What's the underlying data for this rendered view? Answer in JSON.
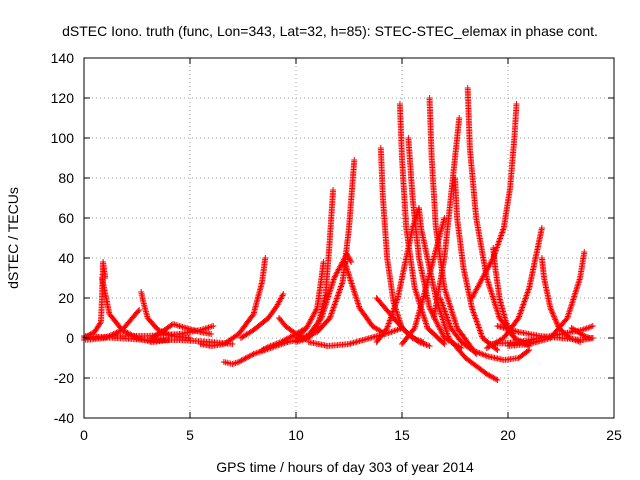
{
  "chart_data": {
    "type": "scatter",
    "title": "dSTEC Iono. truth (func, Lon=343, Lat=32, h=85): STEC-STEC_elemax in phase cont.",
    "xlabel": "GPS time / hours of day 303 of year 2014",
    "ylabel": "dSTEC  / TECUs",
    "xlim": [
      0,
      25
    ],
    "ylim": [
      -40,
      140
    ],
    "x_ticks": [
      "0",
      "5",
      "10",
      "15",
      "20",
      "25"
    ],
    "y_ticks": [
      "-40",
      "-20",
      "0",
      "20",
      "40",
      "60",
      "80",
      "100",
      "120",
      "140"
    ],
    "grid": true,
    "marker": "plus",
    "color": "#ff0000",
    "series": [
      {
        "x": [
          0.0,
          0.5,
          0.8,
          0.85,
          0.9,
          1.0
        ],
        "y": [
          0,
          3,
          8,
          20,
          38,
          30
        ]
      },
      {
        "x": [
          0.85,
          1.2,
          1.8,
          2.5,
          3.2,
          4.0
        ],
        "y": [
          30,
          12,
          4,
          0,
          -2,
          -1
        ]
      },
      {
        "x": [
          0.0,
          1.0,
          1.8,
          2.2,
          2.6
        ],
        "y": [
          -1,
          0,
          4,
          9,
          14
        ]
      },
      {
        "x": [
          2.7,
          2.8,
          3.0,
          3.5,
          4.2,
          5.0
        ],
        "y": [
          23,
          18,
          10,
          4,
          1,
          0
        ]
      },
      {
        "x": [
          3.2,
          3.8,
          4.2,
          4.8,
          5.5,
          6.0
        ],
        "y": [
          0,
          4,
          7,
          5,
          3,
          2
        ]
      },
      {
        "x": [
          0.3,
          1.5,
          3.0,
          4.5,
          5.5,
          6.1
        ],
        "y": [
          0,
          1,
          1,
          2,
          4,
          6
        ]
      },
      {
        "x": [
          0.0,
          1.5,
          3.0,
          4.5,
          6.0,
          7.0
        ],
        "y": [
          1,
          0,
          -1,
          -1,
          -2,
          -3
        ]
      },
      {
        "x": [
          5.5,
          6.0,
          6.6,
          7.3,
          8.0,
          8.4,
          8.55
        ],
        "y": [
          -3,
          -4,
          -3,
          2,
          12,
          28,
          40
        ]
      },
      {
        "x": [
          6.6,
          7.0,
          7.3,
          8.0,
          8.8,
          9.6,
          10.5
        ],
        "y": [
          -12,
          -13,
          -12,
          -8,
          -5,
          -2,
          0
        ]
      },
      {
        "x": [
          8.4,
          8.8,
          9.3,
          10.0,
          10.5
        ],
        "y": [
          -6,
          -4,
          -2,
          2,
          5
        ]
      },
      {
        "x": [
          7.4,
          8.0,
          8.7,
          9.1,
          9.4
        ],
        "y": [
          0,
          4,
          10,
          16,
          22
        ]
      },
      {
        "x": [
          9.2,
          9.5,
          10.0,
          10.3
        ],
        "y": [
          10,
          6,
          2,
          0
        ]
      },
      {
        "x": [
          10.0,
          10.5,
          11.0,
          11.2,
          11.3
        ],
        "y": [
          0,
          5,
          15,
          30,
          38
        ]
      },
      {
        "x": [
          10.0,
          10.6,
          11.0,
          11.4,
          11.6,
          11.75
        ],
        "y": [
          -2,
          0,
          5,
          22,
          50,
          74
        ]
      },
      {
        "x": [
          10.2,
          11.0,
          11.6,
          12.2,
          12.5,
          12.75
        ],
        "y": [
          0,
          3,
          10,
          28,
          55,
          89
        ]
      },
      {
        "x": [
          10.5,
          11.2,
          11.8,
          12.4,
          12.6
        ],
        "y": [
          0,
          10,
          30,
          42,
          38
        ]
      },
      {
        "x": [
          12.3,
          12.6,
          13.0,
          13.6,
          14.2
        ],
        "y": [
          38,
          28,
          15,
          6,
          2
        ]
      },
      {
        "x": [
          10.6,
          11.5,
          12.5,
          13.5,
          14.5,
          15.0
        ],
        "y": [
          -2,
          -4,
          -3,
          0,
          3,
          5
        ]
      },
      {
        "x": [
          14.0,
          14.1,
          14.3,
          14.6,
          15.0,
          15.5,
          16.0
        ],
        "y": [
          95,
          70,
          40,
          18,
          5,
          0,
          -2
        ]
      },
      {
        "x": [
          13.8,
          14.3,
          14.8,
          15.2,
          15.5,
          15.8
        ],
        "y": [
          -2,
          5,
          20,
          40,
          55,
          65
        ]
      },
      {
        "x": [
          14.9,
          15.0,
          15.2,
          15.6,
          16.2,
          17.0
        ],
        "y": [
          117,
          90,
          55,
          25,
          5,
          -3
        ]
      },
      {
        "x": [
          13.8,
          14.6,
          15.2,
          15.8,
          16.3
        ],
        "y": [
          20,
          10,
          3,
          -2,
          -4
        ]
      },
      {
        "x": [
          15.0,
          15.6,
          16.0,
          16.5,
          17.0
        ],
        "y": [
          -3,
          5,
          20,
          40,
          60
        ]
      },
      {
        "x": [
          15.3,
          15.5,
          15.8,
          16.3,
          17.0,
          17.8
        ],
        "y": [
          100,
          70,
          40,
          15,
          0,
          -5
        ]
      },
      {
        "x": [
          15.8,
          15.9,
          16.2,
          16.6,
          17.2,
          18.0,
          19.0,
          19.5
        ],
        "y": [
          65,
          55,
          40,
          20,
          0,
          -10,
          -18,
          -21
        ]
      },
      {
        "x": [
          16.3,
          16.4,
          16.6,
          17.0,
          17.6,
          18.5
        ],
        "y": [
          120,
          90,
          55,
          25,
          5,
          -8
        ]
      },
      {
        "x": [
          16.5,
          17.0,
          17.3,
          17.5,
          17.7
        ],
        "y": [
          10,
          40,
          70,
          90,
          110
        ]
      },
      {
        "x": [
          16.8,
          17.3,
          17.8,
          18.3,
          19.0,
          19.8,
          20.5,
          21.0
        ],
        "y": [
          20,
          5,
          -2,
          -6,
          -9,
          -11,
          -10,
          -6
        ]
      },
      {
        "x": [
          17.5,
          17.6,
          17.9,
          18.3,
          18.8,
          19.5
        ],
        "y": [
          80,
          60,
          35,
          15,
          0,
          -6
        ]
      },
      {
        "x": [
          18.1,
          18.2,
          18.5,
          19.0,
          19.6,
          20.3,
          21.0
        ],
        "y": [
          125,
          95,
          60,
          30,
          10,
          0,
          -4
        ]
      },
      {
        "x": [
          18.3,
          18.8,
          19.3,
          19.8,
          20.1,
          20.3,
          20.4
        ],
        "y": [
          20,
          30,
          40,
          55,
          75,
          100,
          117
        ]
      },
      {
        "x": [
          19.3,
          19.4,
          19.6,
          19.9,
          20.3
        ],
        "y": [
          45,
          35,
          20,
          8,
          0
        ]
      },
      {
        "x": [
          19.0,
          19.8,
          20.5,
          21.0,
          21.4,
          21.6
        ],
        "y": [
          -5,
          0,
          10,
          25,
          45,
          55
        ]
      },
      {
        "x": [
          21.6,
          21.7,
          22.0,
          22.4,
          22.9,
          23.4
        ],
        "y": [
          40,
          30,
          15,
          5,
          0,
          -2
        ]
      },
      {
        "x": [
          19.2,
          20.5,
          21.5,
          22.5,
          23.5,
          24.0
        ],
        "y": [
          -3,
          -2,
          0,
          2,
          4,
          6
        ]
      },
      {
        "x": [
          20.0,
          21.0,
          22.0,
          22.8,
          23.4,
          23.6
        ],
        "y": [
          -4,
          -3,
          0,
          10,
          30,
          43
        ]
      },
      {
        "x": [
          19.5,
          20.5,
          21.5,
          22.5,
          23.5,
          24.0
        ],
        "y": [
          6,
          3,
          1,
          0,
          -1,
          0
        ]
      },
      {
        "x": [
          23.0,
          23.3,
          23.6,
          23.85,
          24.0
        ],
        "y": [
          5,
          3,
          1,
          0,
          0
        ]
      }
    ]
  }
}
